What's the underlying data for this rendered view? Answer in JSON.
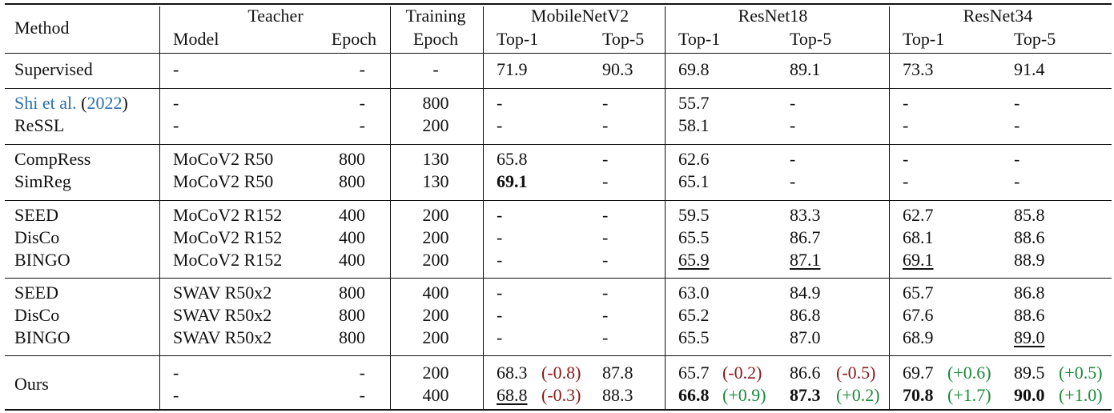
{
  "header": {
    "method": "Method",
    "teacher": "Teacher",
    "model": "Model",
    "epoch": "Epoch",
    "training": "Training",
    "training_epoch": "Epoch",
    "arch": [
      "MobileNetV2",
      "ResNet18",
      "ResNet34"
    ],
    "top1": "Top-1",
    "top5": "Top-5"
  },
  "groups": [
    {
      "rows": [
        {
          "method": "Supervised",
          "model": "-",
          "epoch": "-",
          "train": "-",
          "v": [
            "71.9",
            "90.3",
            "69.8",
            "89.1",
            "73.3",
            "91.4"
          ]
        }
      ]
    },
    {
      "rows": [
        {
          "method": "Shi et al.",
          "cite_year": "2022",
          "model": "-",
          "epoch": "-",
          "train": "800",
          "v": [
            "-",
            "-",
            "55.7",
            "-",
            "-",
            "-"
          ]
        },
        {
          "method": "ReSSL",
          "model": "-",
          "epoch": "-",
          "train": "200",
          "v": [
            "-",
            "-",
            "58.1",
            "-",
            "-",
            "-"
          ]
        }
      ]
    },
    {
      "rows": [
        {
          "method": "CompRess",
          "model": "MoCoV2 R50",
          "epoch": "800",
          "train": "130",
          "v": [
            "65.8",
            "-",
            "62.6",
            "-",
            "-",
            "-"
          ]
        },
        {
          "method": "SimReg",
          "model": "MoCoV2 R50",
          "epoch": "800",
          "train": "130",
          "v": [
            "69.1",
            "-",
            "65.1",
            "-",
            "-",
            "-"
          ],
          "bold": [
            0
          ]
        }
      ]
    },
    {
      "rows": [
        {
          "method": "SEED",
          "model": "MoCoV2 R152",
          "epoch": "400",
          "train": "200",
          "v": [
            "-",
            "-",
            "59.5",
            "83.3",
            "62.7",
            "85.8"
          ]
        },
        {
          "method": "DisCo",
          "model": "MoCoV2 R152",
          "epoch": "400",
          "train": "200",
          "v": [
            "-",
            "-",
            "65.5",
            "86.7",
            "68.1",
            "88.6"
          ]
        },
        {
          "method": "BINGO",
          "model": "MoCoV2 R152",
          "epoch": "400",
          "train": "200",
          "v": [
            "-",
            "-",
            "65.9",
            "87.1",
            "69.1",
            "88.9"
          ],
          "underline": [
            2,
            3,
            4
          ]
        }
      ]
    },
    {
      "rows": [
        {
          "method": "SEED",
          "model": "SWAV R50x2",
          "epoch": "800",
          "train": "400",
          "v": [
            "-",
            "-",
            "63.0",
            "84.9",
            "65.7",
            "86.8"
          ]
        },
        {
          "method": "DisCo",
          "model": "SWAV R50x2",
          "epoch": "800",
          "train": "200",
          "v": [
            "-",
            "-",
            "65.2",
            "86.8",
            "67.6",
            "88.6"
          ]
        },
        {
          "method": "BINGO",
          "model": "SWAV R50x2",
          "epoch": "800",
          "train": "200",
          "v": [
            "-",
            "-",
            "65.5",
            "87.0",
            "68.9",
            "89.0"
          ],
          "underline": [
            5
          ]
        }
      ]
    },
    {
      "method": "Ours",
      "rows": [
        {
          "model": "-",
          "epoch": "-",
          "train": "200",
          "v": [
            "68.3",
            "87.8",
            "65.7",
            "86.6",
            "69.7",
            "89.5"
          ],
          "delta": [
            "(-0.8)",
            "",
            "(-0.2)",
            "(-0.5)",
            "(+0.6)",
            "(+0.5)"
          ]
        },
        {
          "model": "-",
          "epoch": "-",
          "train": "400",
          "v": [
            "68.8",
            "88.3",
            "66.8",
            "87.3",
            "70.8",
            "90.0"
          ],
          "delta": [
            "(-0.3)",
            "",
            "(+0.9)",
            "(+0.2)",
            "(+1.7)",
            "(+1.0)"
          ],
          "bold": [
            2,
            3,
            4,
            5
          ],
          "underline": [
            0
          ]
        }
      ]
    }
  ]
}
